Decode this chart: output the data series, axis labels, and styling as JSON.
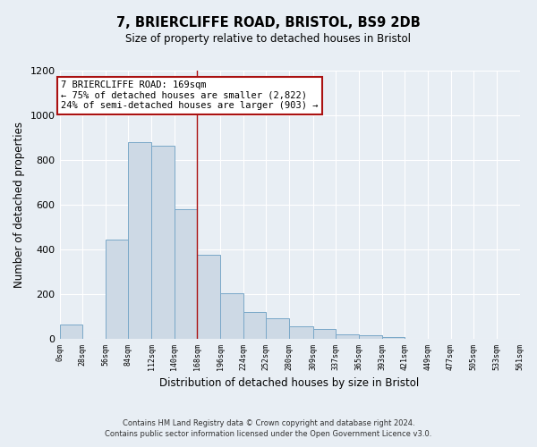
{
  "title1": "7, BRIERCLIFFE ROAD, BRISTOL, BS9 2DB",
  "title2": "Size of property relative to detached houses in Bristol",
  "xlabel": "Distribution of detached houses by size in Bristol",
  "ylabel": "Number of detached properties",
  "bin_edges": [
    0,
    28,
    56,
    84,
    112,
    140,
    168,
    196,
    224,
    252,
    280,
    309,
    337,
    365,
    393,
    421,
    449,
    477,
    505,
    533,
    561
  ],
  "bin_labels": [
    "0sqm",
    "28sqm",
    "56sqm",
    "84sqm",
    "112sqm",
    "140sqm",
    "168sqm",
    "196sqm",
    "224sqm",
    "252sqm",
    "280sqm",
    "309sqm",
    "337sqm",
    "365sqm",
    "393sqm",
    "421sqm",
    "449sqm",
    "477sqm",
    "505sqm",
    "533sqm",
    "561sqm"
  ],
  "counts": [
    65,
    0,
    445,
    880,
    865,
    580,
    375,
    205,
    120,
    90,
    55,
    42,
    20,
    15,
    8,
    0,
    0,
    0,
    0,
    0
  ],
  "bar_color": "#cdd9e5",
  "bar_edge_color": "#7aa8c8",
  "property_line_x": 168,
  "property_line_color": "#aa1111",
  "box_text_line1": "7 BRIERCLIFFE ROAD: 169sqm",
  "box_text_line2": "← 75% of detached houses are smaller (2,822)",
  "box_text_line3": "24% of semi-detached houses are larger (903) →",
  "box_color": "white",
  "box_edge_color": "#aa1111",
  "ylim": [
    0,
    1200
  ],
  "yticks": [
    0,
    200,
    400,
    600,
    800,
    1000,
    1200
  ],
  "footer1": "Contains HM Land Registry data © Crown copyright and database right 2024.",
  "footer2": "Contains public sector information licensed under the Open Government Licence v3.0.",
  "background_color": "#e8eef4"
}
